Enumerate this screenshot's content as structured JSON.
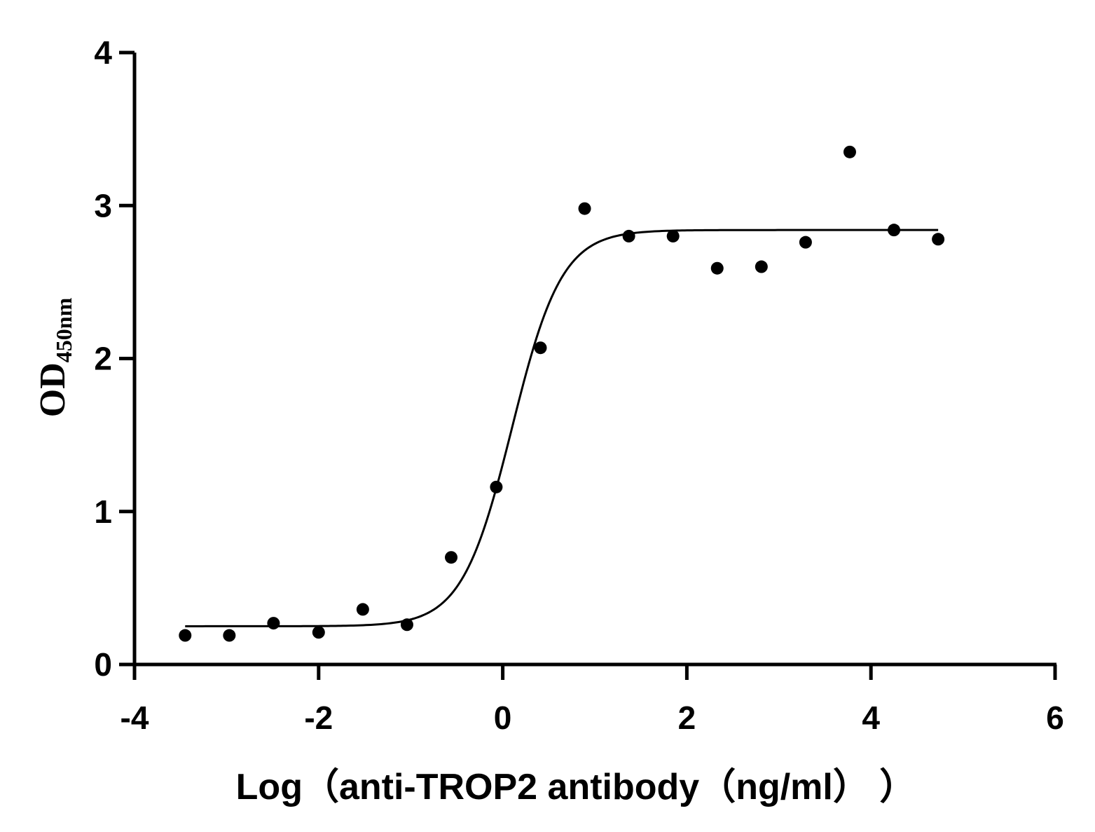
{
  "chart_data": {
    "type": "scatter",
    "xlabel": "Log（anti-TROP2 antibody（ng/ml）    ）",
    "ylabel_main": "OD",
    "ylabel_sub": "450nm",
    "xlim": [
      -4,
      6
    ],
    "ylim": [
      0,
      4
    ],
    "x_ticks": [
      -4,
      -2,
      0,
      2,
      4,
      6
    ],
    "y_ticks": [
      0,
      1,
      2,
      3,
      4
    ],
    "x_tick_labels": [
      "-4",
      "-2",
      "0",
      "2",
      "4",
      "6"
    ],
    "y_tick_labels": [
      "0",
      "1",
      "2",
      "3",
      "4"
    ],
    "grid": false,
    "points": {
      "x": [
        -3.45,
        -2.97,
        -2.49,
        -2.0,
        -1.52,
        -1.04,
        -0.56,
        -0.07,
        0.41,
        0.89,
        1.37,
        1.85,
        2.33,
        2.81,
        3.29,
        3.77,
        4.25,
        4.73
      ],
      "y": [
        0.19,
        0.19,
        0.27,
        0.21,
        0.36,
        0.26,
        0.7,
        1.16,
        2.07,
        2.98,
        2.8,
        2.8,
        2.59,
        2.6,
        2.76,
        3.35,
        2.84,
        2.78
      ]
    },
    "fit_curve": {
      "model": "4PL",
      "bottom": 0.25,
      "top": 2.84,
      "logEC50": 0.1,
      "hill_slope": 1.6,
      "x_range": [
        -3.45,
        4.73
      ]
    },
    "colors": {
      "points": "#000000",
      "line": "#000000",
      "axis": "#000000"
    }
  }
}
